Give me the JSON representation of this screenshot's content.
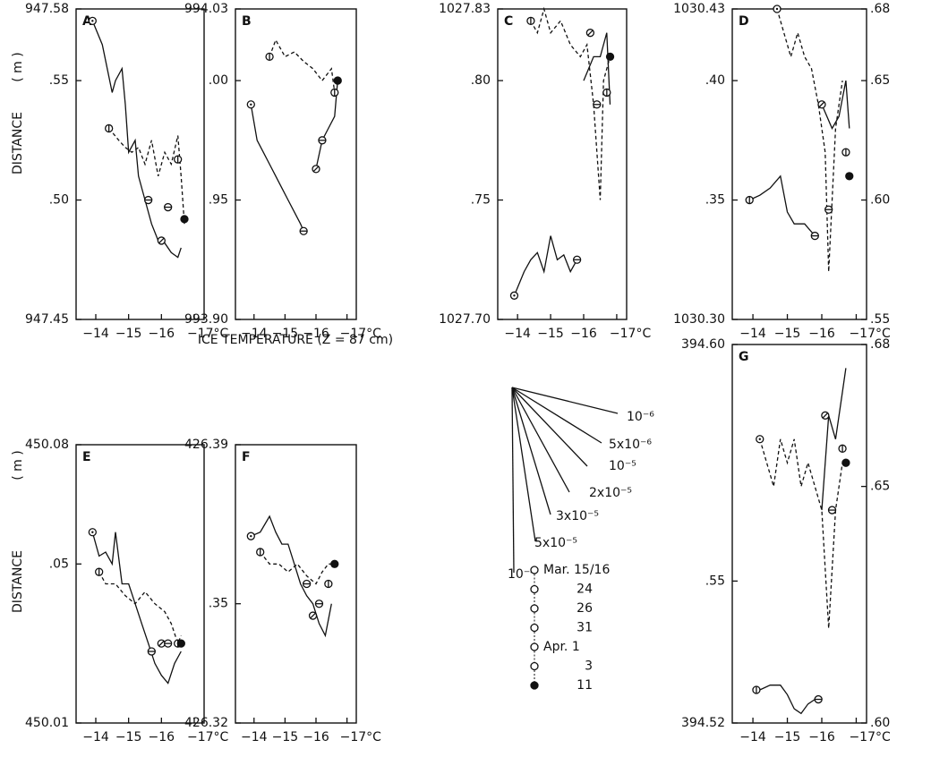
{
  "axis_labels": {
    "y": "DISTANCE",
    "y_unit": "( m )",
    "x": "ICE TEMPERATURE (Z = 87 cm)"
  },
  "slope_legend": {
    "labels": [
      "10⁻⁶",
      "5x10⁻⁶",
      "10⁻⁵",
      "2x10⁻⁵",
      "3x10⁻⁵",
      "5x10⁻⁵",
      "10⁻⁴"
    ]
  },
  "date_legend": {
    "labels": [
      "Mar. 15/16",
      "24",
      "26",
      "31",
      "Apr. 1",
      "3",
      "11"
    ]
  },
  "chart_data": [
    {
      "type": "line",
      "title": "A",
      "xlim": [
        -13.4,
        -17.3
      ],
      "xticks": [
        {
          "value": -14,
          "label": "−14"
        },
        {
          "value": -15,
          "label": "−15"
        },
        {
          "value": -16,
          "label": "−16"
        },
        {
          "value": -17,
          "label": "−17°C"
        }
      ],
      "ylim": [
        947.45,
        947.58
      ],
      "yticks": [
        947.58,
        {
          "value": 947.55,
          "label": ".55"
        },
        {
          "value": 947.5,
          "label": ".50"
        },
        947.45
      ],
      "series": [
        {
          "style": "solid",
          "x": [
            -13.9,
            -14.2,
            -14.5,
            -14.6,
            -14.8,
            -14.9,
            -15.0,
            -15.2,
            -15.3,
            -15.5,
            -15.7,
            -15.9,
            -16.1,
            -16.3,
            -16.5,
            -16.6
          ],
          "values": [
            947.575,
            947.565,
            947.545,
            947.55,
            947.555,
            947.54,
            947.52,
            947.525,
            947.51,
            947.5,
            947.49,
            947.483,
            947.482,
            947.478,
            947.476,
            947.48
          ]
        },
        {
          "style": "dashed",
          "x": [
            -14.4,
            -14.7,
            -14.9,
            -15.1,
            -15.3,
            -15.5,
            -15.7,
            -15.9,
            -16.1,
            -16.3,
            -16.5,
            -16.6,
            -16.7
          ],
          "values": [
            947.53,
            947.525,
            947.522,
            947.52,
            947.522,
            947.515,
            947.525,
            947.51,
            947.52,
            947.515,
            947.527,
            947.51,
            947.49
          ]
        },
        {
          "style": "points",
          "x": [
            -13.9,
            -14.4,
            -15.6,
            -16.0,
            -16.2,
            -16.5,
            -16.7
          ],
          "values": [
            947.575,
            947.53,
            947.5,
            947.483,
            947.497,
            947.517,
            947.492
          ]
        }
      ]
    },
    {
      "type": "line",
      "title": "B",
      "xlim": [
        -13.4,
        -17.3
      ],
      "xticks": [
        {
          "value": -14,
          "label": "−14"
        },
        {
          "value": -15,
          "label": "−15"
        },
        {
          "value": -16,
          "label": "−16"
        },
        {
          "value": -17,
          "label": "−17°C"
        }
      ],
      "ylim": [
        993.9,
        994.03
      ],
      "yticks": [
        994.03,
        {
          "value": 994.0,
          "label": ".00"
        },
        {
          "value": 993.95,
          "label": ".95"
        },
        {
          "value": 993.9,
          "label": "993.90"
        }
      ],
      "series": [
        {
          "style": "solid",
          "x": [
            -13.9,
            -14.1,
            -14.3,
            -14.5,
            -14.7,
            -14.9,
            -15.1,
            -15.3,
            -15.5,
            -15.6
          ],
          "values": [
            993.99,
            993.975,
            993.97,
            993.965,
            993.96,
            993.955,
            993.95,
            993.945,
            993.94,
            993.937
          ]
        },
        {
          "style": "solid",
          "x": [
            -16.0,
            -16.2,
            -16.4,
            -16.6,
            -16.7
          ],
          "values": [
            993.963,
            993.975,
            993.98,
            993.985,
            994.0
          ]
        },
        {
          "style": "dashed",
          "x": [
            -14.5,
            -14.7,
            -15.0,
            -15.3,
            -15.6,
            -15.9,
            -16.2,
            -16.5,
            -16.6
          ],
          "values": [
            994.01,
            994.017,
            994.01,
            994.012,
            994.008,
            994.005,
            994.0,
            994.005,
            993.995
          ]
        },
        {
          "style": "points",
          "x": [
            -13.9,
            -14.5,
            -15.6,
            -16.0,
            -16.2,
            -16.6,
            -16.7
          ],
          "values": [
            993.99,
            994.01,
            993.937,
            993.963,
            993.975,
            993.995,
            994.0
          ]
        }
      ]
    },
    {
      "type": "line",
      "title": "C",
      "xlim": [
        -13.4,
        -17.3
      ],
      "xticks": [
        {
          "value": -14,
          "label": "−14"
        },
        {
          "value": -15,
          "label": "−15"
        },
        {
          "value": -16,
          "label": "−16"
        },
        {
          "value": -17,
          "label": "−17°C"
        }
      ],
      "ylim": [
        1027.7,
        1027.83
      ],
      "yticks": [
        1027.83,
        {
          "value": 1027.8,
          "label": ".80"
        },
        {
          "value": 1027.75,
          "label": ".75"
        },
        {
          "value": 1027.7,
          "label": "1027.70"
        }
      ],
      "series": [
        {
          "style": "solid",
          "x": [
            -13.9,
            -14.2,
            -14.4,
            -14.6,
            -14.8,
            -15.0,
            -15.2,
            -15.4,
            -15.6,
            -15.8
          ],
          "values": [
            1027.71,
            1027.72,
            1027.725,
            1027.728,
            1027.72,
            1027.735,
            1027.725,
            1027.727,
            1027.72,
            1027.725
          ]
        },
        {
          "style": "solid",
          "x": [
            -16.0,
            -16.3,
            -16.5,
            -16.7,
            -16.8
          ],
          "values": [
            1027.8,
            1027.81,
            1027.81,
            1027.82,
            1027.79
          ]
        },
        {
          "style": "dashed",
          "x": [
            -14.4,
            -14.6,
            -14.8,
            -15.0,
            -15.3,
            -15.6,
            -15.9,
            -16.1,
            -16.3,
            -16.5,
            -16.6,
            -16.8
          ],
          "values": [
            1027.825,
            1027.82,
            1027.83,
            1027.82,
            1027.825,
            1027.815,
            1027.81,
            1027.815,
            1027.79,
            1027.75,
            1027.8,
            1027.81
          ]
        },
        {
          "style": "points",
          "x": [
            -13.9,
            -14.4,
            -15.8,
            -16.2,
            -16.4,
            -16.7,
            -16.8
          ],
          "values": [
            1027.71,
            1027.825,
            1027.725,
            1027.82,
            1027.79,
            1027.795,
            1027.81
          ]
        }
      ]
    },
    {
      "type": "line",
      "title": "D",
      "xlim": [
        -13.4,
        -17.3
      ],
      "xticks": [
        {
          "value": -14,
          "label": "−14"
        },
        {
          "value": -15,
          "label": "−15"
        },
        {
          "value": -16,
          "label": "−16"
        },
        {
          "value": -17,
          "label": "−17°C"
        }
      ],
      "ylim": [
        1030.3,
        1030.43
      ],
      "yticks": [
        1030.43,
        {
          "value": 1030.4,
          "label": ".40"
        },
        {
          "value": 1030.35,
          "label": ".35"
        },
        {
          "value": 1030.3,
          "label": "1030.30"
        }
      ],
      "y2lim": [
        0.55,
        0.68
      ],
      "y2ticks": [
        {
          "value": 0.68,
          "label": ".68"
        },
        {
          "value": 0.65,
          "label": ".65"
        },
        {
          "value": 0.6,
          "label": ".60"
        },
        {
          "value": 0.55,
          "label": ".55"
        }
      ],
      "series": [
        {
          "style": "solid",
          "x": [
            -13.9,
            -14.2,
            -14.5,
            -14.8,
            -15.0,
            -15.2,
            -15.5,
            -15.8
          ],
          "values": [
            1030.35,
            1030.352,
            1030.355,
            1030.36,
            1030.345,
            1030.34,
            1030.34,
            1030.335
          ]
        },
        {
          "style": "solid",
          "x": [
            -16.0,
            -16.3,
            -16.5,
            -16.7,
            -16.8
          ],
          "values": [
            1030.39,
            1030.38,
            1030.385,
            1030.4,
            1030.38
          ]
        },
        {
          "style": "dashed",
          "x": [
            -14.7,
            -14.9,
            -15.1,
            -15.3,
            -15.5,
            -15.7,
            -15.9,
            -16.1,
            -16.2,
            -16.4,
            -16.6
          ],
          "values": [
            1030.43,
            1030.42,
            1030.41,
            1030.42,
            1030.41,
            1030.405,
            1030.39,
            1030.37,
            1030.32,
            1030.38,
            1030.4
          ]
        },
        {
          "style": "points",
          "x": [
            -14.7,
            -13.9,
            -15.8,
            -16.0,
            -16.2,
            -16.7,
            -16.8
          ],
          "values": [
            1030.43,
            1030.35,
            1030.335,
            1030.39,
            1030.346,
            1030.37,
            1030.36
          ]
        }
      ]
    },
    {
      "type": "line",
      "title": "E",
      "xlim": [
        -13.4,
        -17.3
      ],
      "xticks": [
        {
          "value": -14,
          "label": "−14"
        },
        {
          "value": -15,
          "label": "−15"
        },
        {
          "value": -16,
          "label": "−16"
        },
        {
          "value": -17,
          "label": "−17°C"
        }
      ],
      "ylim": [
        450.01,
        450.08
      ],
      "yticks": [
        450.08,
        {
          "value": 450.05,
          "label": ".05"
        },
        450.01
      ],
      "series": [
        {
          "style": "solid",
          "x": [
            -13.9,
            -14.1,
            -14.3,
            -14.5,
            -14.6,
            -14.8,
            -15.0,
            -15.2,
            -15.4,
            -15.6,
            -15.8,
            -16.0,
            -16.2,
            -16.4,
            -16.6
          ],
          "values": [
            450.058,
            450.052,
            450.053,
            450.05,
            450.058,
            450.045,
            450.045,
            450.04,
            450.035,
            450.03,
            450.025,
            450.022,
            450.02,
            450.025,
            450.028
          ]
        },
        {
          "style": "dashed",
          "x": [
            -14.1,
            -14.3,
            -14.6,
            -14.9,
            -15.2,
            -15.5,
            -15.8,
            -16.1,
            -16.3,
            -16.5,
            -16.6
          ],
          "values": [
            450.048,
            450.045,
            450.045,
            450.042,
            450.04,
            450.043,
            450.04,
            450.038,
            450.035,
            450.03,
            450.032
          ]
        },
        {
          "style": "points",
          "x": [
            -13.9,
            -14.1,
            -15.7,
            -16.0,
            -16.2,
            -16.5,
            -16.6
          ],
          "values": [
            450.058,
            450.048,
            450.028,
            450.03,
            450.03,
            450.03,
            450.03
          ]
        }
      ]
    },
    {
      "type": "line",
      "title": "F",
      "xlim": [
        -13.4,
        -17.3
      ],
      "xticks": [
        {
          "value": -14,
          "label": "−14"
        },
        {
          "value": -15,
          "label": "−15"
        },
        {
          "value": -16,
          "label": "−16"
        },
        {
          "value": -17,
          "label": "−17°C"
        }
      ],
      "ylim": [
        426.32,
        426.39
      ],
      "yticks": [
        426.39,
        {
          "value": 426.35,
          "label": ".35"
        },
        426.32
      ],
      "series": [
        {
          "style": "solid",
          "x": [
            -13.9,
            -14.2,
            -14.5,
            -14.7,
            -14.9,
            -15.1,
            -15.3,
            -15.5,
            -15.7,
            -15.9,
            -16.1,
            -16.3,
            -16.5
          ],
          "values": [
            426.367,
            426.368,
            426.372,
            426.368,
            426.365,
            426.365,
            426.36,
            426.355,
            426.352,
            426.35,
            426.345,
            426.342,
            426.35
          ]
        },
        {
          "style": "dashed",
          "x": [
            -14.2,
            -14.5,
            -14.8,
            -15.1,
            -15.4,
            -15.7,
            -16.0,
            -16.2,
            -16.4,
            -16.6
          ],
          "values": [
            426.363,
            426.36,
            426.36,
            426.358,
            426.36,
            426.357,
            426.355,
            426.358,
            426.36,
            426.36
          ]
        },
        {
          "style": "points",
          "x": [
            -13.9,
            -14.2,
            -15.7,
            -15.9,
            -16.1,
            -16.4,
            -16.6
          ],
          "values": [
            426.367,
            426.363,
            426.355,
            426.347,
            426.35,
            426.355,
            426.36
          ]
        }
      ]
    },
    {
      "type": "line",
      "title": "G",
      "xlim": [
        -13.4,
        -17.3
      ],
      "xticks": [
        {
          "value": -14,
          "label": "−14"
        },
        {
          "value": -15,
          "label": "−15"
        },
        {
          "value": -16,
          "label": "−16"
        },
        {
          "value": -17,
          "label": "−17°C"
        }
      ],
      "ylim": [
        394.52,
        394.6
      ],
      "yticks": [
        {
          "value": 394.6,
          "label": "394.60"
        },
        {
          "value": 394.55,
          "label": ".55"
        },
        394.52
      ],
      "y2lim": [
        0.6,
        0.68
      ],
      "y2ticks": [
        {
          "value": 0.68,
          "label": ".68"
        },
        {
          "value": 0.65,
          "label": ".65"
        },
        {
          "value": 0.6,
          "label": ".60"
        }
      ],
      "series": [
        {
          "style": "solid",
          "x": [
            -14.2,
            -14.5,
            -14.8,
            -15.0,
            -15.2,
            -15.4,
            -15.6,
            -15.8,
            -15.9
          ],
          "values": [
            394.527,
            394.528,
            394.528,
            394.526,
            394.523,
            394.522,
            394.524,
            394.525,
            394.525
          ]
        },
        {
          "style": "solid",
          "x": [
            -16.0,
            -16.2,
            -16.4,
            -16.6,
            -16.7
          ],
          "values": [
            394.565,
            394.585,
            394.58,
            394.59,
            394.595
          ]
        },
        {
          "style": "dashed",
          "x": [
            -14.2,
            -14.4,
            -14.6,
            -14.8,
            -15.0,
            -15.2,
            -15.4,
            -15.6,
            -15.8,
            -16.0,
            -16.2,
            -16.4,
            -16.6
          ],
          "values": [
            394.58,
            394.575,
            394.57,
            394.58,
            394.575,
            394.58,
            394.57,
            394.575,
            394.57,
            394.565,
            394.54,
            394.565,
            394.575
          ]
        },
        {
          "style": "points",
          "x": [
            -14.2,
            -14.1,
            -15.9,
            -16.1,
            -16.3,
            -16.6,
            -16.7
          ],
          "values": [
            394.58,
            394.527,
            394.525,
            394.585,
            394.565,
            394.578,
            394.575
          ]
        }
      ]
    }
  ]
}
